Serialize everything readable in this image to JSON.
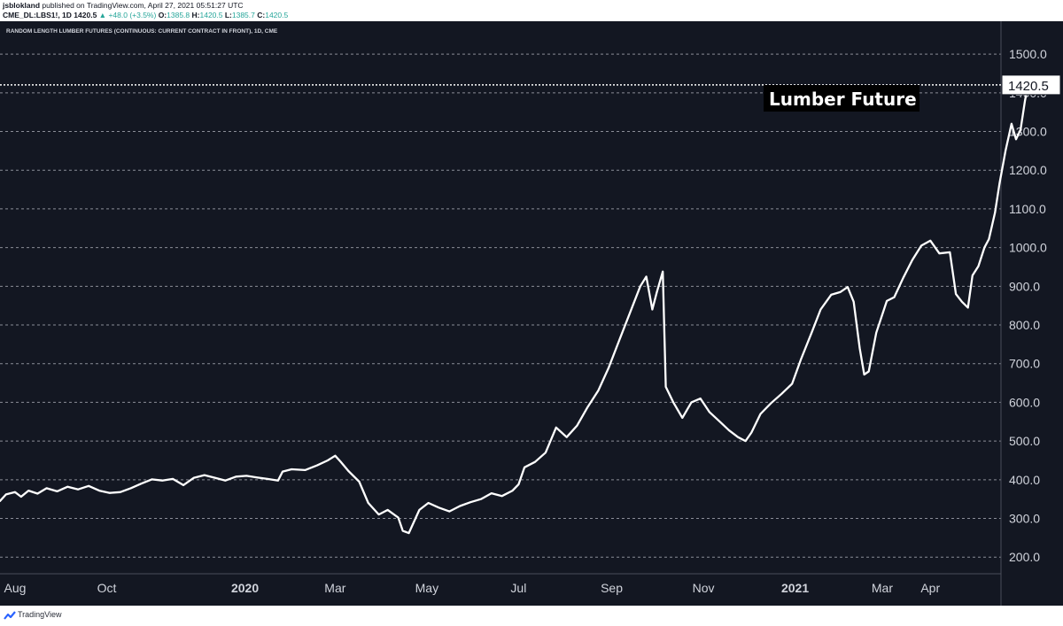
{
  "header": {
    "user": "jsblokland",
    "published": " published on TradingView.com, April 27, 2021 05:51:27 UTC",
    "symbol": "CME_DL:LBS1!, 1D",
    "last": " 1420.5 ",
    "change": "▲ +48.0 (+3.5%)",
    "o_label": " O:",
    "o_value": "1385.8",
    "h_label": " H:",
    "h_value": "1420.5",
    "l_label": " L:",
    "l_value": "1385.7",
    "c_label": " C:",
    "c_value": "1420.5"
  },
  "footer": {
    "brand": "TradingView",
    "logo_icon": "tradingview-logo-icon"
  },
  "colors": {
    "background": "#131722",
    "line": "#ffffff",
    "grid": "#b2b5be",
    "axis_text": "#d1d4dc"
  },
  "chart_data": {
    "type": "line",
    "title": "RANDOM LENGTH LUMBER FUTURES (CONTINUOUS: CURRENT CONTRACT IN FRONT), 1D, CME",
    "annotation": "Lumber Future",
    "last_price_label": "1420.5",
    "ylim": [
      157,
      1585
    ],
    "y_ticks": [
      {
        "value": 200,
        "label": "200.0"
      },
      {
        "value": 300,
        "label": "300.0"
      },
      {
        "value": 400,
        "label": "400.0"
      },
      {
        "value": 500,
        "label": "500.0"
      },
      {
        "value": 600,
        "label": "600.0"
      },
      {
        "value": 700,
        "label": "700.0"
      },
      {
        "value": 800,
        "label": "800.0"
      },
      {
        "value": 900,
        "label": "900.0"
      },
      {
        "value": 1000,
        "label": "1000.0"
      },
      {
        "value": 1100,
        "label": "1100.0"
      },
      {
        "value": 1200,
        "label": "1200.0"
      },
      {
        "value": 1300,
        "label": "1300.0"
      },
      {
        "value": 1400,
        "label": "1400.0"
      },
      {
        "value": 1500,
        "label": "1500.0"
      }
    ],
    "x_range": [
      "2019-07-22",
      "2021-05-18"
    ],
    "x_ticks": [
      {
        "date": "2019-08-01",
        "label": "Aug",
        "bold": false
      },
      {
        "date": "2019-10-01",
        "label": "Oct",
        "bold": false
      },
      {
        "date": "2020-01-01",
        "label": "2020",
        "bold": true
      },
      {
        "date": "2020-03-01",
        "label": "Mar",
        "bold": false
      },
      {
        "date": "2020-05-01",
        "label": "May",
        "bold": false
      },
      {
        "date": "2020-07-01",
        "label": "Jul",
        "bold": false
      },
      {
        "date": "2020-09-01",
        "label": "Sep",
        "bold": false
      },
      {
        "date": "2020-11-01",
        "label": "Nov",
        "bold": false
      },
      {
        "date": "2021-01-01",
        "label": "2021",
        "bold": true
      },
      {
        "date": "2021-02-28",
        "label": "Mar",
        "bold": false
      },
      {
        "date": "2021-04-01",
        "label": "Apr",
        "bold": false
      }
    ],
    "series": [
      {
        "points": [
          [
            "2019-07-22",
            345
          ],
          [
            "2019-07-26",
            362
          ],
          [
            "2019-08-01",
            368
          ],
          [
            "2019-08-05",
            356
          ],
          [
            "2019-08-10",
            372
          ],
          [
            "2019-08-16",
            364
          ],
          [
            "2019-08-22",
            378
          ],
          [
            "2019-08-29",
            370
          ],
          [
            "2019-09-05",
            382
          ],
          [
            "2019-09-12",
            375
          ],
          [
            "2019-09-19",
            384
          ],
          [
            "2019-09-26",
            372
          ],
          [
            "2019-10-03",
            366
          ],
          [
            "2019-10-10",
            368
          ],
          [
            "2019-10-17",
            378
          ],
          [
            "2019-10-24",
            390
          ],
          [
            "2019-10-31",
            401
          ],
          [
            "2019-11-07",
            398
          ],
          [
            "2019-11-14",
            402
          ],
          [
            "2019-11-21",
            386
          ],
          [
            "2019-11-28",
            405
          ],
          [
            "2019-12-05",
            412
          ],
          [
            "2019-12-12",
            405
          ],
          [
            "2019-12-19",
            398
          ],
          [
            "2019-12-26",
            408
          ],
          [
            "2020-01-02",
            410
          ],
          [
            "2020-01-09",
            406
          ],
          [
            "2020-01-16",
            402
          ],
          [
            "2020-01-23",
            398
          ],
          [
            "2020-01-26",
            421
          ],
          [
            "2020-02-01",
            427
          ],
          [
            "2020-02-10",
            425
          ],
          [
            "2020-02-18",
            437
          ],
          [
            "2020-02-25",
            450
          ],
          [
            "2020-03-01",
            462
          ],
          [
            "2020-03-05",
            445
          ],
          [
            "2020-03-10",
            422
          ],
          [
            "2020-03-17",
            395
          ],
          [
            "2020-03-23",
            340
          ],
          [
            "2020-03-30",
            310
          ],
          [
            "2020-04-05",
            322
          ],
          [
            "2020-04-12",
            302
          ],
          [
            "2020-04-15",
            268
          ],
          [
            "2020-04-19",
            262
          ],
          [
            "2020-04-26",
            322
          ],
          [
            "2020-05-02",
            340
          ],
          [
            "2020-05-09",
            328
          ],
          [
            "2020-05-16",
            318
          ],
          [
            "2020-05-23",
            332
          ],
          [
            "2020-05-30",
            342
          ],
          [
            "2020-06-06",
            350
          ],
          [
            "2020-06-13",
            365
          ],
          [
            "2020-06-20",
            358
          ],
          [
            "2020-06-27",
            372
          ],
          [
            "2020-07-01",
            388
          ],
          [
            "2020-07-05",
            432
          ],
          [
            "2020-07-12",
            446
          ],
          [
            "2020-07-19",
            470
          ],
          [
            "2020-07-26",
            535
          ],
          [
            "2020-08-02",
            510
          ],
          [
            "2020-08-09",
            540
          ],
          [
            "2020-08-16",
            588
          ],
          [
            "2020-08-23",
            630
          ],
          [
            "2020-08-30",
            690
          ],
          [
            "2020-09-06",
            760
          ],
          [
            "2020-09-13",
            830
          ],
          [
            "2020-09-20",
            900
          ],
          [
            "2020-09-24",
            925
          ],
          [
            "2020-09-28",
            840
          ],
          [
            "2020-10-01",
            885
          ],
          [
            "2020-10-05",
            938
          ],
          [
            "2020-10-07",
            640
          ],
          [
            "2020-10-12",
            600
          ],
          [
            "2020-10-18",
            560
          ],
          [
            "2020-10-24",
            600
          ],
          [
            "2020-10-30",
            610
          ],
          [
            "2020-11-05",
            575
          ],
          [
            "2020-11-12",
            550
          ],
          [
            "2020-11-18",
            528
          ],
          [
            "2020-11-24",
            510
          ],
          [
            "2020-11-29",
            500
          ],
          [
            "2020-12-03",
            522
          ],
          [
            "2020-12-09",
            570
          ],
          [
            "2020-12-16",
            598
          ],
          [
            "2020-12-23",
            622
          ],
          [
            "2020-12-30",
            648
          ],
          [
            "2021-01-05",
            712
          ],
          [
            "2021-01-12",
            780
          ],
          [
            "2021-01-18",
            840
          ],
          [
            "2021-01-25",
            878
          ],
          [
            "2021-01-31",
            885
          ],
          [
            "2021-02-05",
            898
          ],
          [
            "2021-02-09",
            860
          ],
          [
            "2021-02-13",
            740
          ],
          [
            "2021-02-16",
            672
          ],
          [
            "2021-02-19",
            680
          ],
          [
            "2021-02-24",
            780
          ],
          [
            "2021-03-03",
            862
          ],
          [
            "2021-03-08",
            872
          ],
          [
            "2021-03-14",
            922
          ],
          [
            "2021-03-20",
            968
          ],
          [
            "2021-03-26",
            1005
          ],
          [
            "2021-04-01",
            1018
          ],
          [
            "2021-04-07",
            985
          ],
          [
            "2021-04-14",
            988
          ],
          [
            "2021-04-18",
            880
          ],
          [
            "2021-04-22",
            860
          ],
          [
            "2021-04-26",
            845
          ],
          [
            "2021-04-29",
            928
          ],
          [
            "2021-05-03",
            952
          ],
          [
            "2021-05-07",
            1000
          ],
          [
            "2021-05-10",
            1022
          ],
          [
            "2021-05-14",
            1090
          ],
          [
            "2021-05-17",
            1165
          ],
          [
            "2021-05-21",
            1250
          ],
          [
            "2021-05-25",
            1320
          ],
          [
            "2021-05-28",
            1280
          ],
          [
            "2021-05-31",
            1305
          ],
          [
            "2021-06-03",
            1380
          ],
          [
            "2021-06-05",
            1420.5
          ]
        ]
      }
    ]
  }
}
